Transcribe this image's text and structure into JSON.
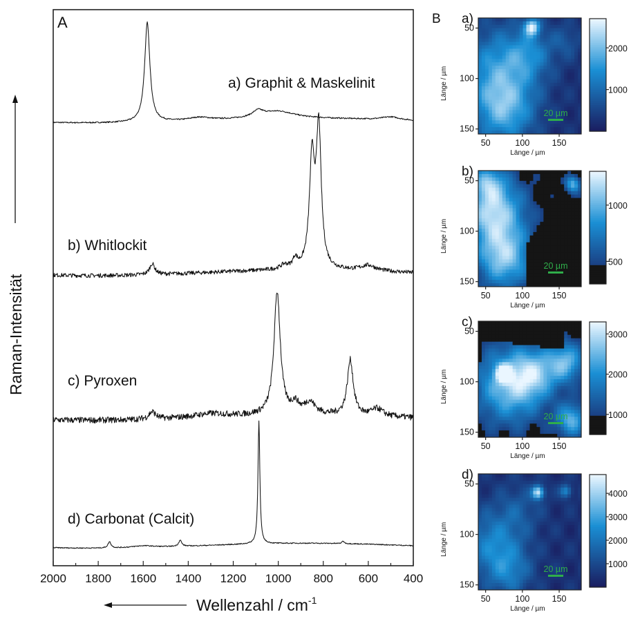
{
  "panel_a_label": "A",
  "panel_b_label": "B",
  "chart_data": [
    {
      "type": "line",
      "panel": "A",
      "xlabel": "Wellenzahl / cm",
      "xlabel_sup": "-1",
      "ylabel": "Raman-Intensität",
      "xlim": [
        2000,
        400
      ],
      "x_reversed": true,
      "x_ticks": [
        2000,
        1800,
        1600,
        1400,
        1200,
        1000,
        800,
        600,
        400
      ],
      "y_ticks_shown": false,
      "series": [
        {
          "name": "a) Graphit & Maskelinit",
          "peaks": [
            {
              "x": 1582,
              "height": 0.95,
              "width": 14
            },
            {
              "x": 1350,
              "height": 0.03,
              "width": 60
            },
            {
              "x": 1090,
              "height": 0.06,
              "width": 30
            },
            {
              "x": 1000,
              "height": 0.07,
              "width": 90
            },
            {
              "x": 500,
              "height": 0.03,
              "width": 50
            }
          ],
          "noise": 0.006
        },
        {
          "name": "b) Whitlockit",
          "peaks": [
            {
              "x": 973,
              "height": 0.03,
              "width": 20
            },
            {
              "x": 925,
              "height": 0.07,
              "width": 12
            },
            {
              "x": 850,
              "height": 0.78,
              "width": 14
            },
            {
              "x": 820,
              "height": 1.0,
              "width": 13
            },
            {
              "x": 1560,
              "height": 0.08,
              "width": 14
            },
            {
              "x": 600,
              "height": 0.04,
              "width": 40
            }
          ],
          "noise": 0.015
        },
        {
          "name": "c) Pyroxen",
          "peaks": [
            {
              "x": 1005,
              "height": 1.0,
              "width": 17
            },
            {
              "x": 925,
              "height": 0.08,
              "width": 20
            },
            {
              "x": 860,
              "height": 0.1,
              "width": 30
            },
            {
              "x": 680,
              "height": 0.45,
              "width": 16
            },
            {
              "x": 560,
              "height": 0.06,
              "width": 30
            },
            {
              "x": 1560,
              "height": 0.06,
              "width": 18
            },
            {
              "x": 1300,
              "height": 0.03,
              "width": 100
            }
          ],
          "noise": 0.025
        },
        {
          "name": "d) Carbonat (Calcit)",
          "peaks": [
            {
              "x": 1086,
              "height": 1.0,
              "width": 5
            },
            {
              "x": 1750,
              "height": 0.05,
              "width": 8
            },
            {
              "x": 1436,
              "height": 0.05,
              "width": 8
            },
            {
              "x": 712,
              "height": 0.02,
              "width": 6
            },
            {
              "x": 1600,
              "height": 0.015,
              "width": 60
            }
          ],
          "noise": 0.004
        }
      ]
    },
    {
      "type": "heatmap",
      "panel": "B",
      "xlabel": "Länge / µm",
      "ylabel": "Länge / µm",
      "x_ticks": [
        50,
        100,
        150
      ],
      "y_ticks": [
        50,
        100,
        150
      ],
      "scale_bar_label": "20 µm",
      "scale_bar_color": "#2fae4a",
      "maps": [
        {
          "label": "a)",
          "colorbar_ticks": [
            1000,
            2000
          ],
          "colorbar_range": [
            0,
            2700
          ],
          "dark_floor": false
        },
        {
          "label": "b)",
          "colorbar_ticks": [
            500,
            1000
          ],
          "colorbar_range": [
            300,
            1300
          ],
          "dark_floor": true
        },
        {
          "label": "c)",
          "colorbar_ticks": [
            1000,
            2000,
            3000
          ],
          "colorbar_range": [
            500,
            3300
          ],
          "dark_floor": true
        },
        {
          "label": "d)",
          "colorbar_ticks": [
            1000,
            2000,
            3000,
            4000
          ],
          "colorbar_range": [
            0,
            4800
          ],
          "dark_floor": false
        }
      ]
    }
  ],
  "colors": {
    "map_low": "#1a1b5e",
    "map_mid": "#1a8fd4",
    "map_high": "#eaf6ff",
    "map_floor": "#151515"
  }
}
